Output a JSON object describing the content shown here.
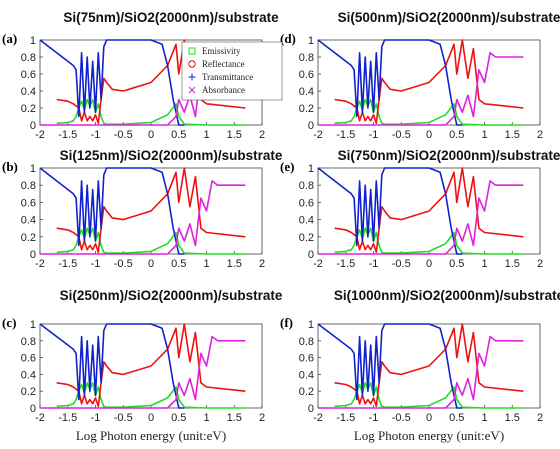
{
  "chart_data": [
    {
      "panel_label": "(a)",
      "title": "Si(75nm)/SiO2(2000nm)/substrate"
    },
    {
      "panel_label": "(b)",
      "title": "Si(125nm)/SiO2(2000nm)/substrate"
    },
    {
      "panel_label": "(c)",
      "title": "Si(250nm)/SiO2(2000nm)/substrate"
    },
    {
      "panel_label": "(d)",
      "title": "Si(500nm)/SiO2(2000nm)/substrate"
    },
    {
      "panel_label": "(e)",
      "title": "Si(750nm)/SiO2(2000nm)/substrate"
    },
    {
      "panel_label": "(f)",
      "title": "Si(1000nm)/SiO2(2000nm)/substrate"
    }
  ],
  "shared": {
    "type": "line",
    "xlabel": "Log Photon energy (unit:eV)",
    "xlim": [
      -2,
      2
    ],
    "ylim": [
      0,
      1
    ],
    "xticks": [
      "-2",
      "-1.5",
      "-1",
      "-0.5",
      "0",
      "0.5",
      "1",
      "1.5",
      "2"
    ],
    "yticks": [
      "0",
      "0.2",
      "0.4",
      "0.6",
      "0.8",
      "1"
    ],
    "legend_placement": "top-center (panel a)",
    "series": [
      {
        "name": "Emissivity",
        "color": "#22dd22",
        "marker": "square",
        "x": [
          -1.7,
          -1.5,
          -1.4,
          -1.35,
          -1.3,
          -1.25,
          -1.2,
          -1.15,
          -1.1,
          -1.05,
          -1.0,
          -0.95,
          -0.9,
          -0.85,
          -0.8,
          -0.5,
          0,
          0.3,
          0.45,
          0.5,
          0.6,
          1.0,
          1.7
        ],
        "y": [
          0.02,
          0.03,
          0.05,
          0.1,
          0.2,
          0.28,
          0.18,
          0.3,
          0.22,
          0.3,
          0.15,
          0.25,
          0.1,
          0.02,
          0.01,
          0.01,
          0.03,
          0.12,
          0.25,
          0.1,
          0.01,
          0,
          0
        ]
      },
      {
        "name": "Reflectance",
        "color": "#ee1111",
        "marker": "circle",
        "x": [
          -1.7,
          -1.5,
          -1.4,
          -1.3,
          -1.25,
          -1.2,
          -1.15,
          -1.1,
          -1.05,
          -1.0,
          -0.95,
          -0.9,
          -0.85,
          -0.8,
          -0.7,
          -0.5,
          0,
          0.3,
          0.45,
          0.5,
          0.6,
          0.7,
          0.8,
          0.9,
          1.0,
          1.7
        ],
        "y": [
          0.3,
          0.28,
          0.25,
          0.2,
          0.05,
          0.15,
          0.05,
          0.1,
          0.05,
          0.12,
          0.02,
          0.3,
          0.55,
          0.5,
          0.42,
          0.4,
          0.5,
          0.7,
          0.95,
          0.6,
          1.0,
          0.55,
          0.9,
          0.3,
          0.25,
          0.2
        ]
      },
      {
        "name": "Transmittance",
        "color": "#1122cc",
        "marker": "plus",
        "x": [
          -2,
          -1.5,
          -1.4,
          -1.35,
          -1.3,
          -1.25,
          -1.2,
          -1.15,
          -1.1,
          -1.05,
          -1.0,
          -0.95,
          -0.9,
          -0.85,
          -0.8,
          -0.5,
          0,
          0.2,
          0.3,
          0.4,
          0.5,
          0.6
        ],
        "y": [
          1,
          0.75,
          0.7,
          0.65,
          0.1,
          0.85,
          0.15,
          0.8,
          0.2,
          0.75,
          0.15,
          0.85,
          0.3,
          0.92,
          1.0,
          1.0,
          1.0,
          0.95,
          0.7,
          0.3,
          0.0,
          0.0
        ]
      },
      {
        "name": "Absorbance",
        "color": "#dd22dd",
        "marker": "x",
        "x": [
          -2,
          -0.5,
          0.3,
          0.45,
          0.5,
          0.6,
          0.7,
          0.8,
          0.9,
          1.0,
          1.1,
          1.2,
          1.7
        ],
        "y": [
          0,
          0,
          0,
          0.1,
          0.3,
          0.15,
          0.35,
          0.1,
          0.65,
          0.5,
          0.85,
          0.8,
          0.8
        ]
      }
    ]
  }
}
